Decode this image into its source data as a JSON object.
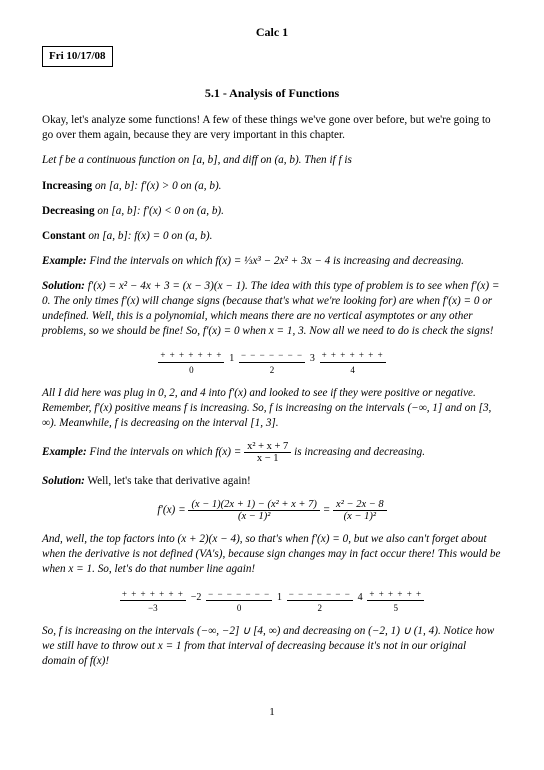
{
  "course": "Calc 1",
  "date": "Fri 10/17/08",
  "section": "5.1 - Analysis of Functions",
  "intro": "Okay, let's analyze some functions! A few of these things we've gone over before, but we're going to go over them again, because they are very important in this chapter.",
  "setup": "Let f be a continuous function on [a, b], and diff on (a, b). Then if f is",
  "inc_label": "Increasing",
  "inc_text": " on [a, b]: f′(x) > 0 on (a, b).",
  "dec_label": "Decreasing",
  "dec_text": " on [a, b]: f′(x) < 0 on (a, b).",
  "const_label": "Constant",
  "const_text": " on [a, b]: f(x) = 0 on (a, b).",
  "ex1_label": "Example:",
  "ex1_text": " Find the intervals on which f(x) = ⅓x³ − 2x² + 3x − 4 is increasing and decreasing.",
  "sol1_label": "Solution:",
  "sol1_text": " f′(x) = x² − 4x + 3 = (x − 3)(x − 1). The idea with this type of problem is to see when f′(x) = 0. The only times f′(x) will change signs (because that's what we're looking for) are when f′(x) = 0 or undefined. Well, this is a polynomial, which means there are no vertical asymptotes or any other problems, so we should be fine! So, f′(x) = 0 when x = 1, 3. Now all we need to do is check the signs!",
  "signline1": {
    "segs": [
      {
        "signs": "+ + + + + + +",
        "tick": "0"
      },
      {
        "break": "1"
      },
      {
        "signs": "− − − − − − −",
        "tick": "2"
      },
      {
        "break": "3"
      },
      {
        "signs": "+ + + + + + +",
        "tick": "4"
      }
    ]
  },
  "after1": "All I did here was plug in 0, 2, and 4 into f′(x) and looked to see if they were positive or negative. Remember, f′(x) positive means f is increasing. So, f is increasing on the intervals (−∞, 1] and on [3, ∞). Meanwhile, f is decreasing on the interval [1, 3].",
  "ex2_label": "Example:",
  "ex2_pre": " Find the intervals on which f(x) = ",
  "ex2_num": "x² + x + 7",
  "ex2_den": "x − 1",
  "ex2_post": " is increasing and decreasing.",
  "sol2_label": "Solution:",
  "sol2_text": " Well, let's take that derivative again!",
  "deriv": {
    "lhs": "f′(x) = ",
    "num1": "(x − 1)(2x + 1) − (x² + x + 7)",
    "den1": "(x − 1)²",
    "eq": " = ",
    "num2": "x² − 2x − 8",
    "den2": "(x − 1)²"
  },
  "after_deriv": "And, well, the top factors into (x + 2)(x − 4), so that's when f′(x) = 0, but we also can't forget about when the derivative is not defined (VA's), because sign changes may in fact occur there! This would be when x = 1. So, let's do that number line again!",
  "signline2": {
    "segs": [
      {
        "signs": "+ + + + + + +",
        "tick": "−3"
      },
      {
        "break": "−2"
      },
      {
        "signs": "− − − − − − −",
        "tick": "0"
      },
      {
        "break": "1"
      },
      {
        "signs": "− − − − − − −",
        "tick": "2"
      },
      {
        "break": "4"
      },
      {
        "signs": "+ + + + + +",
        "tick": "5"
      }
    ]
  },
  "conclusion": "So, f is increasing on the intervals (−∞, −2] ∪ [4, ∞) and decreasing on (−2, 1) ∪ (1, 4). Notice how we still have to throw out x = 1 from that interval of decreasing because it's not in our original domain of f(x)!",
  "pagenum": "1"
}
